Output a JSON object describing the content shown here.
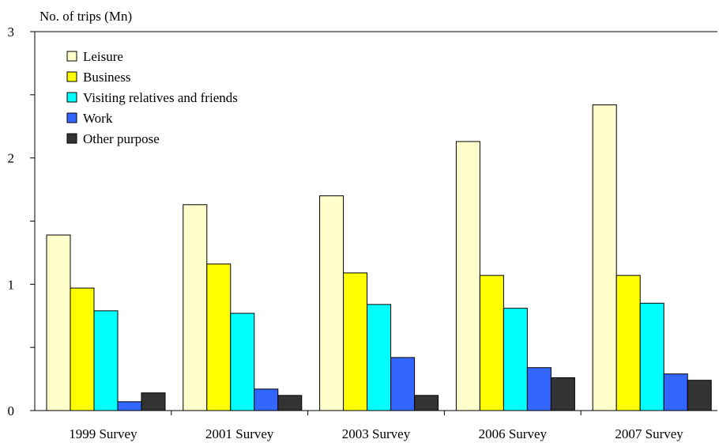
{
  "chart_data": {
    "type": "bar",
    "ylabel": "No. of trips (Mn)",
    "ylim": [
      0,
      3
    ],
    "yticks": [
      0,
      1,
      2,
      3
    ],
    "categories": [
      "1999 Survey",
      "2001 Survey",
      "2003 Survey",
      "2006 Survey",
      "2007 Survey"
    ],
    "series": [
      {
        "name": "Leisure",
        "color": "#ffffcc",
        "values": [
          1.39,
          1.63,
          1.7,
          2.13,
          2.42
        ]
      },
      {
        "name": "Business",
        "color": "#ffff00",
        "values": [
          0.97,
          1.16,
          1.09,
          1.07,
          1.07
        ]
      },
      {
        "name": "Visiting relatives and friends",
        "color": "#00ffff",
        "values": [
          0.79,
          0.77,
          0.84,
          0.81,
          0.85
        ]
      },
      {
        "name": "Work",
        "color": "#3366ff",
        "values": [
          0.07,
          0.17,
          0.42,
          0.34,
          0.29
        ]
      },
      {
        "name": "Other purpose",
        "color": "#333333",
        "values": [
          0.14,
          0.12,
          0.12,
          0.26,
          0.24
        ]
      }
    ],
    "legend_position": "top-left",
    "grid": false
  }
}
